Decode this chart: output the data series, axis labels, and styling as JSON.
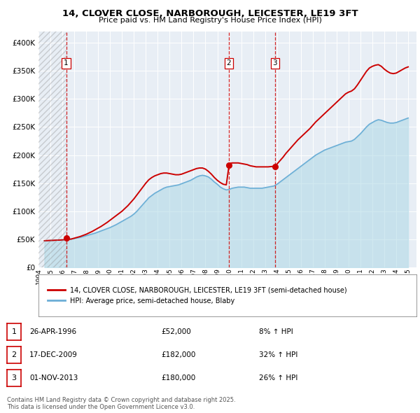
{
  "title_line1": "14, CLOVER CLOSE, NARBOROUGH, LEICESTER, LE19 3FT",
  "title_line2": "Price paid vs. HM Land Registry's House Price Index (HPI)",
  "ylim": [
    0,
    420000
  ],
  "xlim_start": 1994.0,
  "xlim_end": 2025.7,
  "yticks": [
    0,
    50000,
    100000,
    150000,
    200000,
    250000,
    300000,
    350000,
    400000
  ],
  "ytick_labels": [
    "£0",
    "£50K",
    "£100K",
    "£150K",
    "£200K",
    "£250K",
    "£300K",
    "£350K",
    "£400K"
  ],
  "hpi_color": "#add8e6",
  "price_color": "#cc0000",
  "vline_color": "#cc0000",
  "background_color": "#ffffff",
  "plot_bg_color": "#e8eef5",
  "grid_color": "#ffffff",
  "legend_items": [
    "14, CLOVER CLOSE, NARBOROUGH, LEICESTER, LE19 3FT (semi-detached house)",
    "HPI: Average price, semi-detached house, Blaby"
  ],
  "transactions": [
    {
      "num": 1,
      "date_label": "26-APR-1996",
      "price_label": "£52,000",
      "hpi_label": "8% ↑ HPI",
      "year": 1996.32,
      "price": 52000
    },
    {
      "num": 2,
      "date_label": "17-DEC-2009",
      "price_label": "£182,000",
      "hpi_label": "32% ↑ HPI",
      "year": 2009.96,
      "price": 182000
    },
    {
      "num": 3,
      "date_label": "01-NOV-2013",
      "price_label": "£180,000",
      "hpi_label": "26% ↑ HPI",
      "year": 2013.83,
      "price": 180000
    }
  ],
  "footer_line1": "Contains HM Land Registry data © Crown copyright and database right 2025.",
  "footer_line2": "This data is licensed under the Open Government Licence v3.0.",
  "hpi_data": [
    [
      1994.5,
      47500
    ],
    [
      1995.0,
      48000
    ],
    [
      1995.25,
      48200
    ],
    [
      1995.5,
      48500
    ],
    [
      1995.75,
      48700
    ],
    [
      1996.0,
      49000
    ],
    [
      1996.25,
      49500
    ],
    [
      1996.5,
      50000
    ],
    [
      1996.75,
      50500
    ],
    [
      1997.0,
      51500
    ],
    [
      1997.25,
      52500
    ],
    [
      1997.5,
      53500
    ],
    [
      1997.75,
      55000
    ],
    [
      1998.0,
      56500
    ],
    [
      1998.25,
      58000
    ],
    [
      1998.5,
      59500
    ],
    [
      1998.75,
      61000
    ],
    [
      1999.0,
      63000
    ],
    [
      1999.25,
      65000
    ],
    [
      1999.5,
      67000
    ],
    [
      1999.75,
      69000
    ],
    [
      2000.0,
      71000
    ],
    [
      2000.25,
      73500
    ],
    [
      2000.5,
      76000
    ],
    [
      2000.75,
      79000
    ],
    [
      2001.0,
      82000
    ],
    [
      2001.25,
      85000
    ],
    [
      2001.5,
      88000
    ],
    [
      2001.75,
      91000
    ],
    [
      2002.0,
      95000
    ],
    [
      2002.25,
      100000
    ],
    [
      2002.5,
      106000
    ],
    [
      2002.75,
      112000
    ],
    [
      2003.0,
      118000
    ],
    [
      2003.25,
      124000
    ],
    [
      2003.5,
      128000
    ],
    [
      2003.75,
      132000
    ],
    [
      2004.0,
      135000
    ],
    [
      2004.25,
      138000
    ],
    [
      2004.5,
      141000
    ],
    [
      2004.75,
      143000
    ],
    [
      2005.0,
      144000
    ],
    [
      2005.25,
      145000
    ],
    [
      2005.5,
      146000
    ],
    [
      2005.75,
      147000
    ],
    [
      2006.0,
      149000
    ],
    [
      2006.25,
      151000
    ],
    [
      2006.5,
      153000
    ],
    [
      2006.75,
      155000
    ],
    [
      2007.0,
      158000
    ],
    [
      2007.25,
      161000
    ],
    [
      2007.5,
      163000
    ],
    [
      2007.75,
      164000
    ],
    [
      2008.0,
      163000
    ],
    [
      2008.25,
      161000
    ],
    [
      2008.5,
      157000
    ],
    [
      2008.75,
      152000
    ],
    [
      2009.0,
      148000
    ],
    [
      2009.25,
      143000
    ],
    [
      2009.5,
      140000
    ],
    [
      2009.75,
      138000
    ],
    [
      2010.0,
      139000
    ],
    [
      2010.25,
      141000
    ],
    [
      2010.5,
      142000
    ],
    [
      2010.75,
      143000
    ],
    [
      2011.0,
      143000
    ],
    [
      2011.25,
      143000
    ],
    [
      2011.5,
      142000
    ],
    [
      2011.75,
      141000
    ],
    [
      2012.0,
      141000
    ],
    [
      2012.25,
      141000
    ],
    [
      2012.5,
      141000
    ],
    [
      2012.75,
      141000
    ],
    [
      2013.0,
      142000
    ],
    [
      2013.25,
      143000
    ],
    [
      2013.5,
      144000
    ],
    [
      2013.75,
      145000
    ],
    [
      2014.0,
      148000
    ],
    [
      2014.25,
      152000
    ],
    [
      2014.5,
      156000
    ],
    [
      2014.75,
      160000
    ],
    [
      2015.0,
      164000
    ],
    [
      2015.25,
      168000
    ],
    [
      2015.5,
      172000
    ],
    [
      2015.75,
      176000
    ],
    [
      2016.0,
      180000
    ],
    [
      2016.25,
      184000
    ],
    [
      2016.5,
      188000
    ],
    [
      2016.75,
      192000
    ],
    [
      2017.0,
      196000
    ],
    [
      2017.25,
      200000
    ],
    [
      2017.5,
      203000
    ],
    [
      2017.75,
      206000
    ],
    [
      2018.0,
      209000
    ],
    [
      2018.25,
      211000
    ],
    [
      2018.5,
      213000
    ],
    [
      2018.75,
      215000
    ],
    [
      2019.0,
      217000
    ],
    [
      2019.25,
      219000
    ],
    [
      2019.5,
      221000
    ],
    [
      2019.75,
      223000
    ],
    [
      2020.0,
      224000
    ],
    [
      2020.25,
      225000
    ],
    [
      2020.5,
      228000
    ],
    [
      2020.75,
      233000
    ],
    [
      2021.0,
      238000
    ],
    [
      2021.25,
      244000
    ],
    [
      2021.5,
      250000
    ],
    [
      2021.75,
      255000
    ],
    [
      2022.0,
      258000
    ],
    [
      2022.25,
      261000
    ],
    [
      2022.5,
      263000
    ],
    [
      2022.75,
      262000
    ],
    [
      2023.0,
      260000
    ],
    [
      2023.25,
      258000
    ],
    [
      2023.5,
      257000
    ],
    [
      2023.75,
      257000
    ],
    [
      2024.0,
      258000
    ],
    [
      2024.25,
      260000
    ],
    [
      2024.5,
      262000
    ],
    [
      2024.75,
      264000
    ],
    [
      2025.0,
      266000
    ]
  ],
  "price_data": [
    [
      1994.5,
      47500
    ],
    [
      1995.0,
      48000
    ],
    [
      1995.25,
      48200
    ],
    [
      1995.5,
      48500
    ],
    [
      1995.75,
      48700
    ],
    [
      1996.0,
      49000
    ],
    [
      1996.25,
      49500
    ],
    [
      1996.5,
      50000
    ],
    [
      1996.75,
      50500
    ],
    [
      1997.0,
      52000
    ],
    [
      1997.25,
      53500
    ],
    [
      1997.5,
      55000
    ],
    [
      1997.75,
      57000
    ],
    [
      1998.0,
      59000
    ],
    [
      1998.25,
      61500
    ],
    [
      1998.5,
      64000
    ],
    [
      1998.75,
      67000
    ],
    [
      1999.0,
      70000
    ],
    [
      1999.25,
      73000
    ],
    [
      1999.5,
      76500
    ],
    [
      1999.75,
      80000
    ],
    [
      2000.0,
      84000
    ],
    [
      2000.25,
      88000
    ],
    [
      2000.5,
      92000
    ],
    [
      2000.75,
      96000
    ],
    [
      2001.0,
      100000
    ],
    [
      2001.25,
      105000
    ],
    [
      2001.5,
      110000
    ],
    [
      2001.75,
      116000
    ],
    [
      2002.0,
      122000
    ],
    [
      2002.25,
      129000
    ],
    [
      2002.5,
      136000
    ],
    [
      2002.75,
      143000
    ],
    [
      2003.0,
      150000
    ],
    [
      2003.25,
      156000
    ],
    [
      2003.5,
      160000
    ],
    [
      2003.75,
      163000
    ],
    [
      2004.0,
      165000
    ],
    [
      2004.25,
      167000
    ],
    [
      2004.5,
      168000
    ],
    [
      2004.75,
      168000
    ],
    [
      2005.0,
      167000
    ],
    [
      2005.25,
      166000
    ],
    [
      2005.5,
      165000
    ],
    [
      2005.75,
      165000
    ],
    [
      2006.0,
      166000
    ],
    [
      2006.25,
      168000
    ],
    [
      2006.5,
      170000
    ],
    [
      2006.75,
      172000
    ],
    [
      2007.0,
      174000
    ],
    [
      2007.25,
      176000
    ],
    [
      2007.5,
      177000
    ],
    [
      2007.75,
      177000
    ],
    [
      2008.0,
      175000
    ],
    [
      2008.25,
      171000
    ],
    [
      2008.5,
      166000
    ],
    [
      2008.75,
      160000
    ],
    [
      2009.0,
      155000
    ],
    [
      2009.25,
      151000
    ],
    [
      2009.5,
      148000
    ],
    [
      2009.75,
      147000
    ],
    [
      2010.0,
      185000
    ],
    [
      2010.25,
      186000
    ],
    [
      2010.5,
      186000
    ],
    [
      2010.75,
      186000
    ],
    [
      2011.0,
      185000
    ],
    [
      2011.25,
      184000
    ],
    [
      2011.5,
      183000
    ],
    [
      2011.75,
      181000
    ],
    [
      2012.0,
      180000
    ],
    [
      2012.25,
      179000
    ],
    [
      2012.5,
      179000
    ],
    [
      2012.75,
      179000
    ],
    [
      2013.0,
      179000
    ],
    [
      2013.25,
      179000
    ],
    [
      2013.5,
      179500
    ],
    [
      2013.75,
      180000
    ],
    [
      2014.0,
      184000
    ],
    [
      2014.25,
      190000
    ],
    [
      2014.5,
      196000
    ],
    [
      2014.75,
      203000
    ],
    [
      2015.0,
      209000
    ],
    [
      2015.25,
      215000
    ],
    [
      2015.5,
      221000
    ],
    [
      2015.75,
      227000
    ],
    [
      2016.0,
      232000
    ],
    [
      2016.25,
      237000
    ],
    [
      2016.5,
      242000
    ],
    [
      2016.75,
      247000
    ],
    [
      2017.0,
      253000
    ],
    [
      2017.25,
      259000
    ],
    [
      2017.5,
      264000
    ],
    [
      2017.75,
      269000
    ],
    [
      2018.0,
      274000
    ],
    [
      2018.25,
      279000
    ],
    [
      2018.5,
      284000
    ],
    [
      2018.75,
      289000
    ],
    [
      2019.0,
      294000
    ],
    [
      2019.25,
      299000
    ],
    [
      2019.5,
      304000
    ],
    [
      2019.75,
      309000
    ],
    [
      2020.0,
      312000
    ],
    [
      2020.25,
      314000
    ],
    [
      2020.5,
      318000
    ],
    [
      2020.75,
      325000
    ],
    [
      2021.0,
      333000
    ],
    [
      2021.25,
      341000
    ],
    [
      2021.5,
      349000
    ],
    [
      2021.75,
      355000
    ],
    [
      2022.0,
      358000
    ],
    [
      2022.25,
      360000
    ],
    [
      2022.5,
      361000
    ],
    [
      2022.75,
      358000
    ],
    [
      2023.0,
      353000
    ],
    [
      2023.25,
      349000
    ],
    [
      2023.5,
      346000
    ],
    [
      2023.75,
      345000
    ],
    [
      2024.0,
      346000
    ],
    [
      2024.25,
      349000
    ],
    [
      2024.5,
      352000
    ],
    [
      2024.75,
      355000
    ],
    [
      2025.0,
      357000
    ]
  ]
}
